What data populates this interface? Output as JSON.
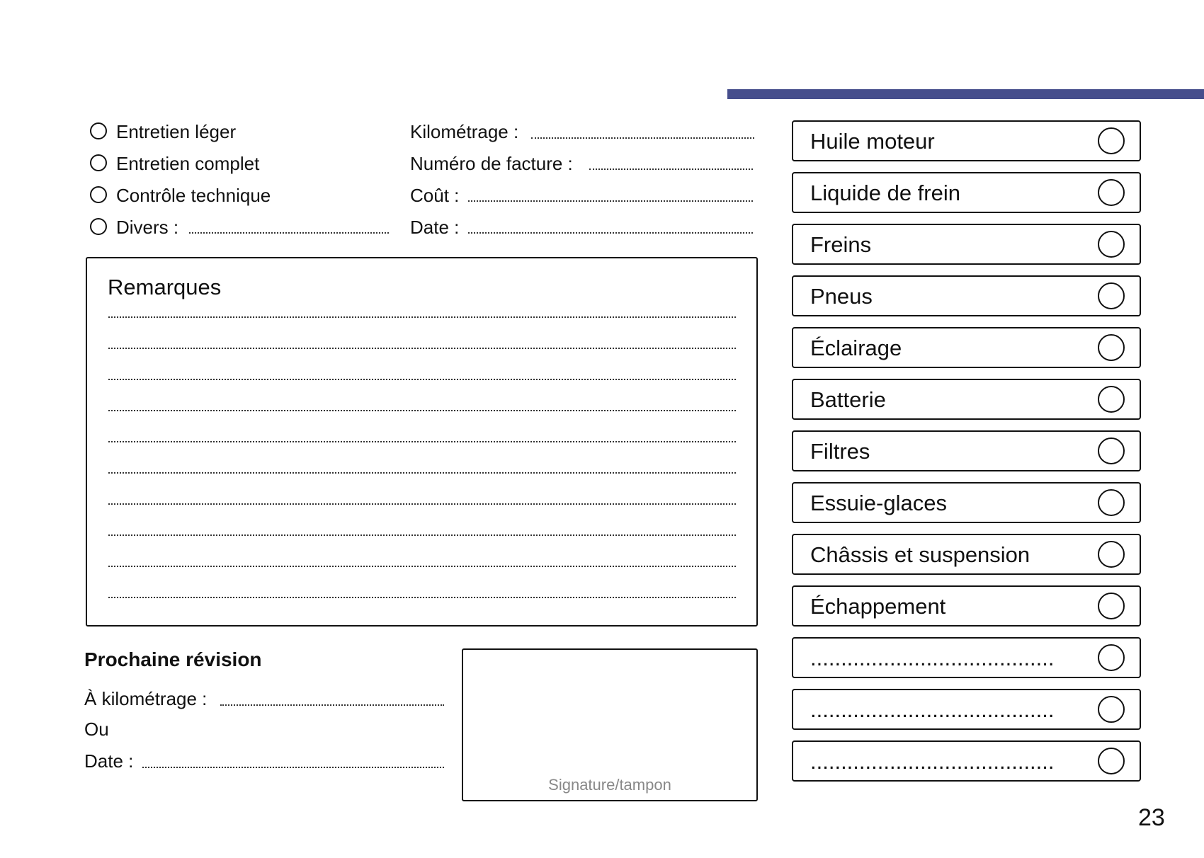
{
  "colors": {
    "accent_bar": "#464e8c"
  },
  "service_types": [
    "Entretien léger",
    "Entretien complet",
    "Contrôle technique",
    "Divers :"
  ],
  "fields": [
    "Kilométrage :",
    "Numéro de facture :",
    "Coût :",
    "Date :"
  ],
  "remarks": {
    "title": "Remarques"
  },
  "next_service": {
    "title": "Prochaine révision",
    "km_label": "À kilométrage :",
    "or_label": "Ou",
    "date_label": "Date :"
  },
  "signature": {
    "caption": "Signature/tampon"
  },
  "checklist": [
    "Huile moteur",
    "Liquide de frein",
    "Freins",
    "Pneus",
    "Éclairage",
    "Batterie",
    "Filtres",
    "Essuie-glaces",
    "Châssis et suspension",
    "Échappement",
    "........................................",
    "........................................",
    "........................................"
  ],
  "page_number": "23"
}
